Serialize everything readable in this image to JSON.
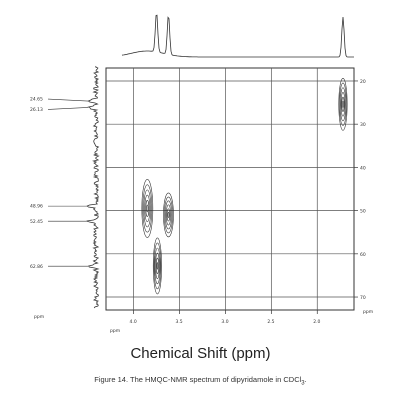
{
  "chart_data": {
    "type": "heatmap",
    "title": "",
    "xlabel": "Chemical Shift (ppm)",
    "x_unit_label": "ppm",
    "y_unit_label": "ppm",
    "xlim": [
      4.3,
      1.6
    ],
    "ylim": [
      17,
      73
    ],
    "x_ticks": [
      4.0,
      3.5,
      3.0,
      2.5,
      2.0
    ],
    "x_tick_labels": [
      "4.0",
      "3.5",
      "3.0",
      "2.5",
      "2.0"
    ],
    "y_ticks": [
      20,
      30,
      40,
      50,
      60,
      70
    ],
    "y_tick_labels": [
      "20",
      "30",
      "40",
      "50",
      "60",
      "70"
    ],
    "f1_peaks": [
      {
        "label": "24.65",
        "value": 24.65
      },
      {
        "label": "26.13",
        "value": 26.13
      },
      {
        "label": "48.96",
        "value": 48.96
      },
      {
        "label": "52.45",
        "value": 52.45
      },
      {
        "label": "62.86",
        "value": 62.86
      }
    ],
    "cross_peaks": [
      {
        "x": 1.72,
        "y": 25.4
      },
      {
        "x": 3.85,
        "y": 49.5
      },
      {
        "x": 3.62,
        "y": 51.0
      },
      {
        "x": 3.74,
        "y": 62.8
      }
    ],
    "f2_projection_peaks": [
      3.75,
      3.62,
      1.72
    ],
    "grid": true,
    "legend": "none"
  },
  "caption_main": "Figure 14.  The HMQC-NMR spectrum of dipyridamole in CDCl",
  "caption_sub": "3",
  "caption_end": "."
}
